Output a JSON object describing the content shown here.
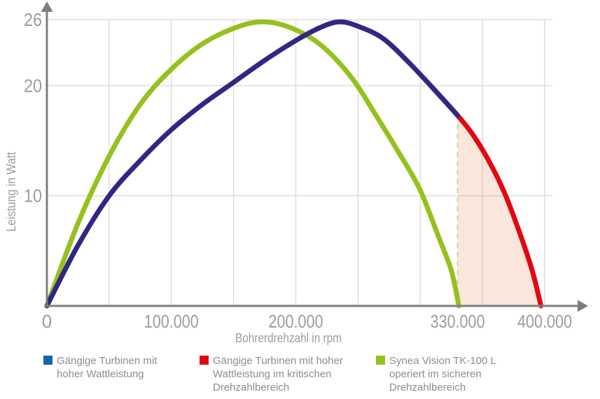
{
  "chart_data": {
    "type": "line",
    "title": "",
    "xlabel": "Bohrerdrehzahl in rpm",
    "ylabel": "Leistung in Watt",
    "xlim_rpm": [
      0,
      430000
    ],
    "ylim_watt": [
      0,
      27.5
    ],
    "grid": true,
    "x_gridline_step_rpm": 50000,
    "x_ticks": [
      {
        "value": 0,
        "label": "0"
      },
      {
        "value": 100000,
        "label": "100.000"
      },
      {
        "value": 200000,
        "label": "200.000"
      },
      {
        "value": 330000,
        "label": "330.000"
      },
      {
        "value": 400000,
        "label": "400.000"
      }
    ],
    "y_ticks": [
      {
        "value": 26,
        "label": "26"
      },
      {
        "value": 20,
        "label": "20"
      },
      {
        "value": 10,
        "label": "10"
      }
    ],
    "critical_range": {
      "from_rpm": 330000,
      "to_rpm": 397000,
      "boundary_style": "dashed",
      "area_fill": "rgba(225,105,35,0.17)"
    },
    "series": [
      {
        "id": "safe-turbines",
        "name": "Gängige Turbinen mit hoher Wattleistung",
        "color": "#312783",
        "points_rpm_watt": [
          [
            0,
            0
          ],
          [
            25000,
            5.5
          ],
          [
            50000,
            10.0
          ],
          [
            75000,
            13.2
          ],
          [
            100000,
            16.0
          ],
          [
            125000,
            18.3
          ],
          [
            150000,
            20.3
          ],
          [
            175000,
            22.3
          ],
          [
            200000,
            24.1
          ],
          [
            220000,
            25.3
          ],
          [
            235000,
            25.8
          ],
          [
            250000,
            25.4
          ],
          [
            270000,
            24.3
          ],
          [
            290000,
            22.2
          ],
          [
            310000,
            19.8
          ],
          [
            330000,
            17.3
          ]
        ]
      },
      {
        "id": "critical-turbines",
        "name": "Gängige Turbinen mit hoher Wattleistung im kritischen Drehzahlbereich",
        "color": "#e30613",
        "points_rpm_watt": [
          [
            330000,
            17.3
          ],
          [
            342000,
            15.6
          ],
          [
            355000,
            13.2
          ],
          [
            368000,
            10.2
          ],
          [
            380000,
            6.6
          ],
          [
            390000,
            3.2
          ],
          [
            397000,
            0
          ]
        ]
      },
      {
        "id": "synea-vision-tk100l",
        "name": "Synea Vision TK-100 L operiert im sicheren Drehzahlbereich",
        "color": "#95c11f",
        "points_rpm_watt": [
          [
            0,
            0
          ],
          [
            25000,
            7.5
          ],
          [
            50000,
            13.6
          ],
          [
            75000,
            18.3
          ],
          [
            100000,
            21.5
          ],
          [
            125000,
            23.8
          ],
          [
            150000,
            25.2
          ],
          [
            172000,
            25.8
          ],
          [
            195000,
            25.3
          ],
          [
            220000,
            23.7
          ],
          [
            245000,
            20.7
          ],
          [
            265000,
            17.2
          ],
          [
            285000,
            13.5
          ],
          [
            300000,
            10.5
          ],
          [
            315000,
            6.2
          ],
          [
            325000,
            3.2
          ],
          [
            331000,
            0
          ]
        ]
      }
    ]
  },
  "legend": {
    "items": [
      {
        "swatch_color": "#1664ab",
        "lines": [
          "Gängige Turbinen mit",
          "hoher Wattleistung"
        ]
      },
      {
        "swatch_color": "#e30613",
        "lines": [
          "Gängige Turbinen mit hoher",
          "Wattleistung im kritischen",
          "Drehzahlbereich"
        ]
      },
      {
        "swatch_color": "#95c11f",
        "lines": [
          "Synea Vision TK-100 L",
          "operiert im sicheren",
          "Drehzahlbereich"
        ]
      }
    ]
  }
}
